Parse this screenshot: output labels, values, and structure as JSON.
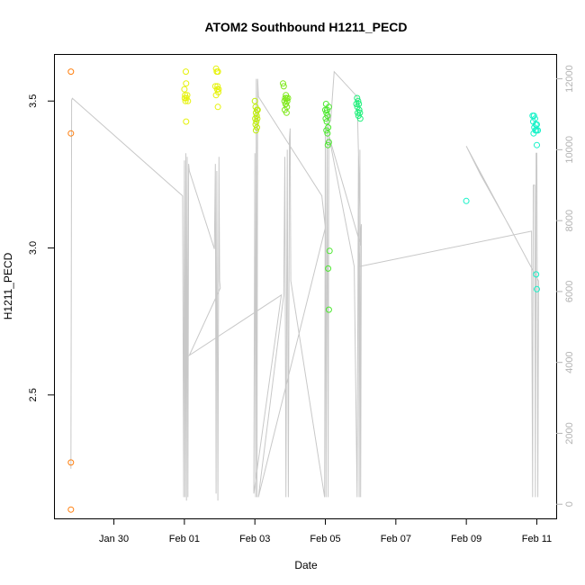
{
  "chart_data": {
    "type": "scatter",
    "title": "ATOM2 Southbound H1211_PECD",
    "xlabel": "Date",
    "ylabel": "H1211_PECD",
    "x_ticks": [
      {
        "label": "Jan 30",
        "day": 30.0
      },
      {
        "label": "Feb 01",
        "day": 32.0
      },
      {
        "label": "Feb 03",
        "day": 34.0
      },
      {
        "label": "Feb 05",
        "day": 36.0
      },
      {
        "label": "Feb 07",
        "day": 38.0
      },
      {
        "label": "Feb 09",
        "day": 40.0
      },
      {
        "label": "Feb 11",
        "day": 42.0
      }
    ],
    "xlim": [
      28.3,
      42.55
    ],
    "y_ticks": [
      2.5,
      3.0,
      3.5
    ],
    "ylim": [
      2.08,
      3.66
    ],
    "y2_ticks": [
      0,
      2000,
      4000,
      6000,
      8000,
      10000,
      12000
    ],
    "y2lim": [
      -400,
      12700
    ],
    "y2_color": "#b3b3b3",
    "grid": false,
    "series": [
      {
        "color": "#ff7f0e",
        "points": [
          [
            28.78,
            3.6
          ],
          [
            28.78,
            3.39
          ],
          [
            28.78,
            2.27
          ],
          [
            28.78,
            2.11
          ]
        ]
      },
      {
        "color": "#e6f20a",
        "points": [
          [
            32.04,
            3.6
          ],
          [
            32.05,
            3.56
          ],
          [
            32.0,
            3.54
          ],
          [
            32.02,
            3.52
          ],
          [
            32.06,
            3.51
          ],
          [
            32.03,
            3.5
          ],
          [
            32.08,
            3.52
          ],
          [
            32.01,
            3.51
          ],
          [
            32.1,
            3.5
          ],
          [
            32.05,
            3.43
          ],
          [
            32.9,
            3.61
          ],
          [
            32.92,
            3.6
          ],
          [
            32.95,
            3.6
          ],
          [
            32.88,
            3.55
          ],
          [
            32.93,
            3.54
          ],
          [
            32.96,
            3.53
          ],
          [
            32.9,
            3.52
          ],
          [
            32.94,
            3.55
          ],
          [
            32.97,
            3.54
          ],
          [
            32.95,
            3.48
          ]
        ]
      },
      {
        "color": "#bfee0a",
        "points": [
          [
            34.0,
            3.5
          ],
          [
            34.02,
            3.48
          ],
          [
            34.06,
            3.47
          ],
          [
            34.08,
            3.47
          ],
          [
            34.03,
            3.46
          ],
          [
            34.05,
            3.45
          ],
          [
            34.01,
            3.44
          ],
          [
            34.07,
            3.44
          ],
          [
            34.04,
            3.43
          ],
          [
            34.02,
            3.42
          ],
          [
            34.06,
            3.41
          ],
          [
            34.03,
            3.4
          ]
        ]
      },
      {
        "color": "#7ee81a",
        "points": [
          [
            34.8,
            3.56
          ],
          [
            34.82,
            3.55
          ],
          [
            34.88,
            3.52
          ],
          [
            34.86,
            3.51
          ],
          [
            34.9,
            3.51
          ],
          [
            34.92,
            3.5
          ],
          [
            34.84,
            3.5
          ],
          [
            34.88,
            3.49
          ],
          [
            34.91,
            3.48
          ],
          [
            34.85,
            3.47
          ],
          [
            34.9,
            3.46
          ],
          [
            34.94,
            3.51
          ],
          [
            34.87,
            3.49
          ]
        ]
      },
      {
        "color": "#4de830",
        "points": [
          [
            36.02,
            3.49
          ],
          [
            36.0,
            3.47
          ],
          [
            36.05,
            3.47
          ],
          [
            36.1,
            3.48
          ],
          [
            36.03,
            3.46
          ],
          [
            36.06,
            3.45
          ],
          [
            36.01,
            3.44
          ],
          [
            36.04,
            3.43
          ],
          [
            36.08,
            3.41
          ],
          [
            36.03,
            3.4
          ],
          [
            36.06,
            3.39
          ],
          [
            36.1,
            3.36
          ],
          [
            36.07,
            3.35
          ],
          [
            36.12,
            2.99
          ],
          [
            36.08,
            2.93
          ],
          [
            36.1,
            2.79
          ]
        ]
      },
      {
        "color": "#1df07a",
        "points": [
          [
            36.9,
            3.51
          ],
          [
            36.93,
            3.5
          ],
          [
            36.88,
            3.49
          ],
          [
            36.95,
            3.49
          ],
          [
            36.91,
            3.48
          ],
          [
            36.96,
            3.47
          ],
          [
            36.92,
            3.46
          ],
          [
            36.98,
            3.46
          ],
          [
            36.94,
            3.45
          ],
          [
            36.99,
            3.44
          ]
        ]
      },
      {
        "color": "#16f2c8",
        "points": [
          [
            40.0,
            3.16
          ],
          [
            41.88,
            3.45
          ],
          [
            41.92,
            3.45
          ],
          [
            41.95,
            3.44
          ],
          [
            41.9,
            3.43
          ],
          [
            41.97,
            3.42
          ],
          [
            42.0,
            3.42
          ],
          [
            41.93,
            3.41
          ],
          [
            41.96,
            3.4
          ],
          [
            41.99,
            3.4
          ],
          [
            42.03,
            3.4
          ],
          [
            41.91,
            3.39
          ],
          [
            42.0,
            3.35
          ],
          [
            41.98,
            2.91
          ],
          [
            42.0,
            2.86
          ]
        ]
      }
    ],
    "altitude_line": {
      "color": "#c8c8c8",
      "points": [
        [
          28.78,
          1000
        ],
        [
          28.8,
          11400
        ],
        [
          28.82,
          11450
        ],
        [
          31.95,
          8700
        ],
        [
          31.98,
          200
        ],
        [
          32.0,
          9700
        ],
        [
          32.02,
          200
        ],
        [
          32.04,
          9900
        ],
        [
          32.06,
          100
        ],
        [
          32.08,
          9800
        ],
        [
          32.1,
          200
        ],
        [
          32.12,
          9600
        ],
        [
          32.14,
          9400
        ],
        [
          32.85,
          7200
        ],
        [
          32.88,
          9600
        ],
        [
          32.9,
          300
        ],
        [
          32.92,
          9400
        ],
        [
          32.95,
          100
        ],
        [
          32.98,
          9800
        ],
        [
          33.0,
          6300
        ],
        [
          33.02,
          6100
        ],
        [
          32.14,
          4200
        ],
        [
          34.75,
          5900
        ],
        [
          33.97,
          300
        ],
        [
          34.0,
          9900
        ],
        [
          34.02,
          200
        ],
        [
          34.04,
          12000
        ],
        [
          34.06,
          200
        ],
        [
          34.08,
          12000
        ],
        [
          34.1,
          11500
        ],
        [
          35.9,
          8700
        ],
        [
          36.0,
          7800
        ],
        [
          34.1,
          200
        ],
        [
          34.82,
          5900
        ],
        [
          34.85,
          9800
        ],
        [
          34.88,
          200
        ],
        [
          34.92,
          10000
        ],
        [
          34.95,
          200
        ],
        [
          34.98,
          10300
        ],
        [
          35.0,
          10600
        ],
        [
          35.02,
          6300
        ],
        [
          35.98,
          200
        ],
        [
          36.0,
          10600
        ],
        [
          36.02,
          200
        ],
        [
          36.05,
          11000
        ],
        [
          36.08,
          200
        ],
        [
          36.1,
          11000
        ],
        [
          36.12,
          11000
        ],
        [
          36.15,
          10800
        ],
        [
          36.25,
          12200
        ],
        [
          36.9,
          11500
        ],
        [
          37.0,
          7300
        ],
        [
          36.1,
          10400
        ],
        [
          36.82,
          6700
        ],
        [
          36.9,
          200
        ],
        [
          36.94,
          9900
        ],
        [
          36.96,
          200
        ],
        [
          36.98,
          10000
        ],
        [
          37.0,
          200
        ],
        [
          37.02,
          7900
        ],
        [
          36.95,
          6700
        ],
        [
          41.85,
          7700
        ],
        [
          41.88,
          200
        ],
        [
          41.9,
          9000
        ],
        [
          41.94,
          9000
        ],
        [
          41.96,
          200
        ],
        [
          41.98,
          9900
        ],
        [
          42.0,
          9900
        ],
        [
          42.03,
          200
        ],
        [
          42.05,
          6300
        ],
        [
          40.0,
          10100
        ],
        [
          40.4,
          9300
        ],
        [
          41.3,
          7700
        ]
      ]
    }
  }
}
